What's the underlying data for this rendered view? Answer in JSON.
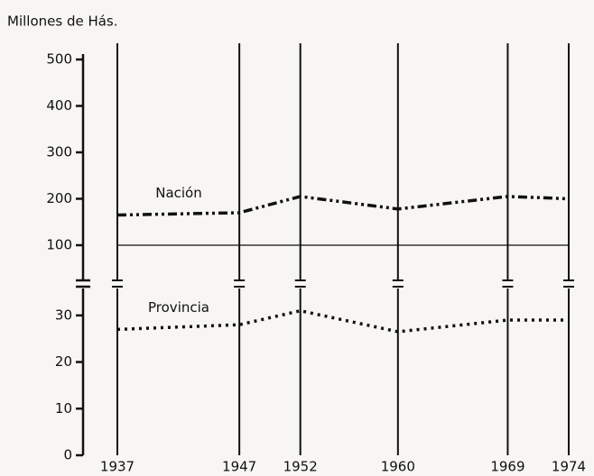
{
  "chart_data": {
    "type": "line",
    "title": "Millones de Hás.",
    "x": [
      1937,
      1947,
      1952,
      1960,
      1969,
      1974
    ],
    "xlim": [
      1937,
      1974
    ],
    "xticks": [
      1937,
      1947,
      1952,
      1960,
      1969,
      1974
    ],
    "ylim": [
      0,
      35
    ],
    "yticks": [
      0,
      10,
      20,
      30
    ],
    "y2lim": [
      100,
      500
    ],
    "y2ticks": [
      100,
      200,
      300,
      400,
      500
    ],
    "series": [
      {
        "name": "Nación",
        "color": "#111111",
        "axis": "y2",
        "style": "dash-dot-dot",
        "values": [
          165,
          170,
          205,
          178,
          205,
          200
        ]
      },
      {
        "name": "Provincia",
        "color": "#111111",
        "axis": "y",
        "style": "dotted",
        "values": [
          27,
          28,
          31,
          26.5,
          29,
          29
        ]
      }
    ]
  }
}
